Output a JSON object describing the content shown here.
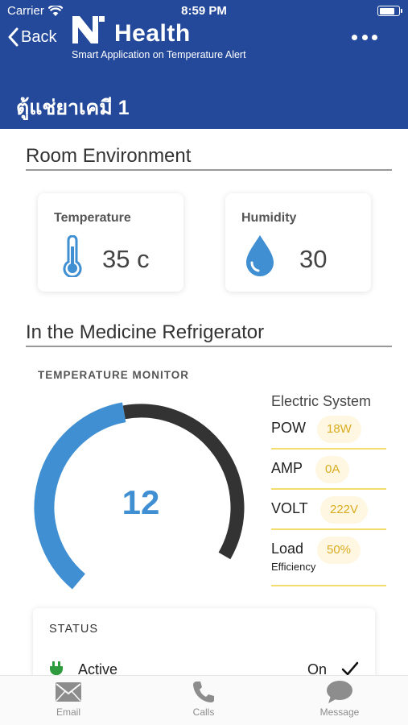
{
  "status_bar": {
    "carrier": "Carrier",
    "time": "8:59 PM",
    "battery_level": 0.8
  },
  "nav": {
    "back_label": "Back",
    "brand": "Health",
    "tagline": "Smart Application on Temperature Alert",
    "page_title": "ตู้แช่ยาเคมี 1"
  },
  "room": {
    "title": "Room Environment",
    "temperature": {
      "label": "Temperature",
      "value": "35 c"
    },
    "humidity": {
      "label": "Humidity",
      "value": "30"
    }
  },
  "fridge": {
    "title": "In the Medicine Refrigerator",
    "monitor": {
      "label": "TEMPERATURE MONITOR",
      "value": "12",
      "fill_fraction": 0.5
    },
    "electric": {
      "title": "Electric System",
      "rows": [
        {
          "name": "POW",
          "value": "18W"
        },
        {
          "name": "AMP",
          "value": "0A"
        },
        {
          "name": "VOLT",
          "value": "222V"
        },
        {
          "name": "Load",
          "sub": "Efficiency",
          "value": "50%"
        }
      ]
    }
  },
  "status": {
    "title": "STATUS",
    "item": {
      "name": "Active",
      "value": "On"
    }
  },
  "tabs": [
    {
      "label": "Email",
      "icon": "envelope-icon"
    },
    {
      "label": "Calls",
      "icon": "phone-icon"
    },
    {
      "label": "Message",
      "icon": "chat-bubble-icon"
    }
  ],
  "colors": {
    "header": "#24499a",
    "accent": "#3f8fd2",
    "gauge_track": "#333333",
    "gold": "#d9ac20",
    "plug": "#2e9b3e"
  }
}
